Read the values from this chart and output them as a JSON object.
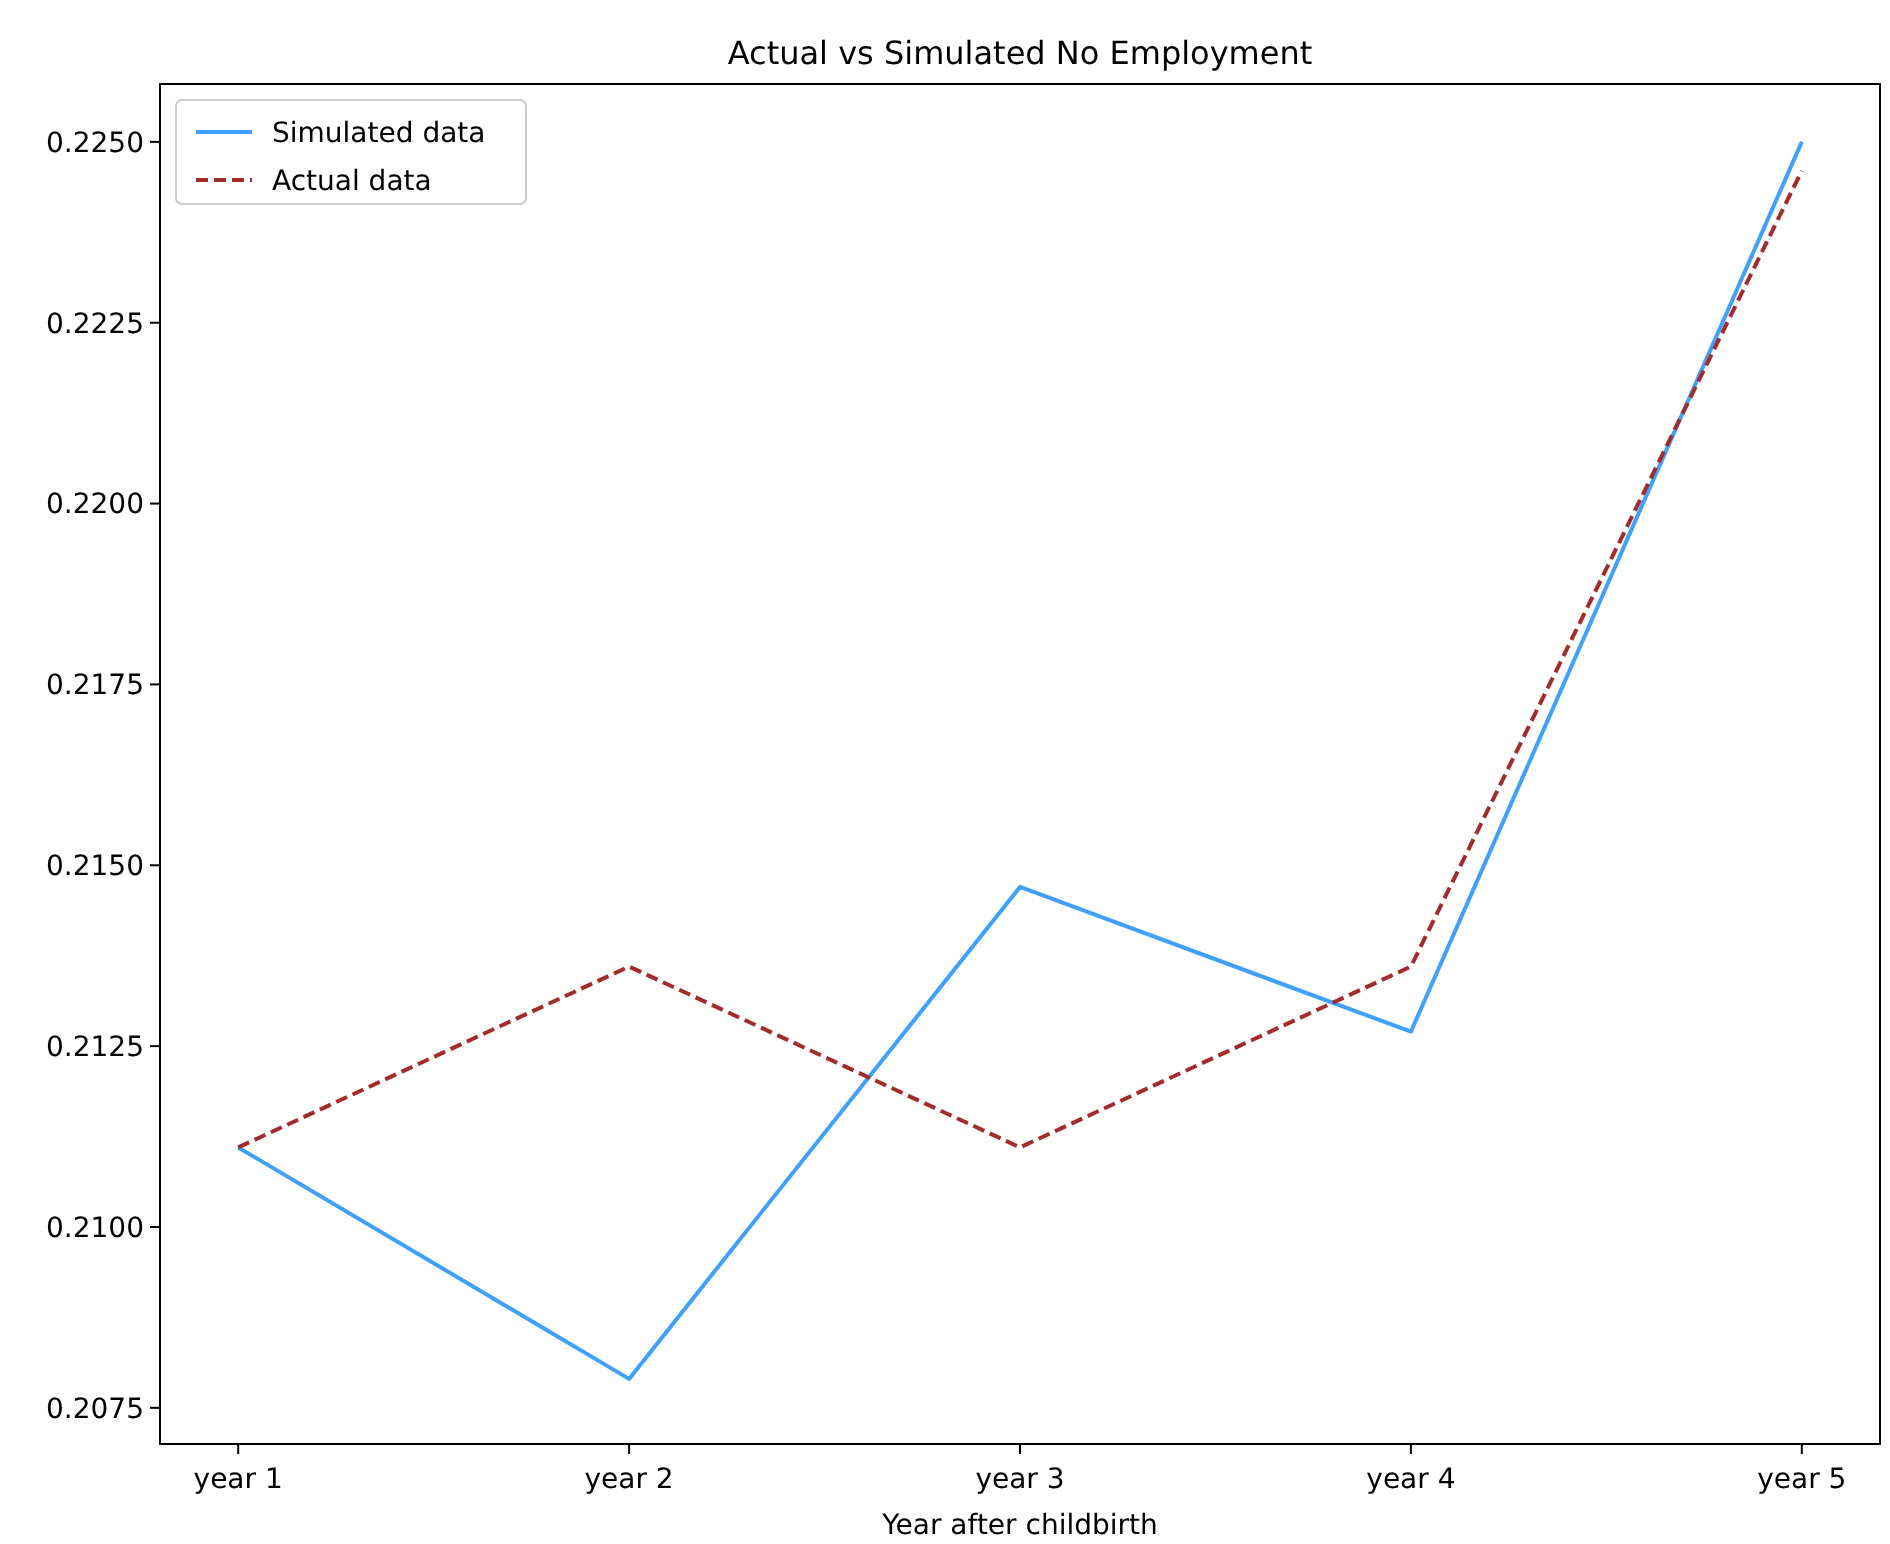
{
  "chart_data": {
    "type": "line",
    "title": "Actual vs Simulated No Employment",
    "xlabel": "Year after childbirth",
    "categories": [
      "year 1",
      "year 2",
      "year 3",
      "year 4",
      "year 5"
    ],
    "series": [
      {
        "name": "Simulated data",
        "color": "#3fa0ff",
        "values": [
          0.2111,
          0.2079,
          0.2147,
          0.2127,
          0.225
        ],
        "line_style": "solid"
      },
      {
        "name": "Actual data",
        "color": "#a52a2a",
        "values": [
          0.2111,
          0.2136,
          0.2111,
          0.2136,
          0.2246
        ],
        "line_style": "dashed"
      }
    ],
    "ylim": [
      0.207,
      0.2258
    ],
    "yticks": [
      {
        "value": 0.2075,
        "label": "0.2075"
      },
      {
        "value": 0.21,
        "label": "0.2100"
      },
      {
        "value": 0.2125,
        "label": "0.2125"
      },
      {
        "value": 0.215,
        "label": "0.2150"
      },
      {
        "value": 0.2175,
        "label": "0.2175"
      },
      {
        "value": 0.22,
        "label": "0.2200"
      },
      {
        "value": 0.2225,
        "label": "0.2225"
      },
      {
        "value": 0.225,
        "label": "0.2250"
      }
    ],
    "grid": false,
    "legend": "top left"
  }
}
